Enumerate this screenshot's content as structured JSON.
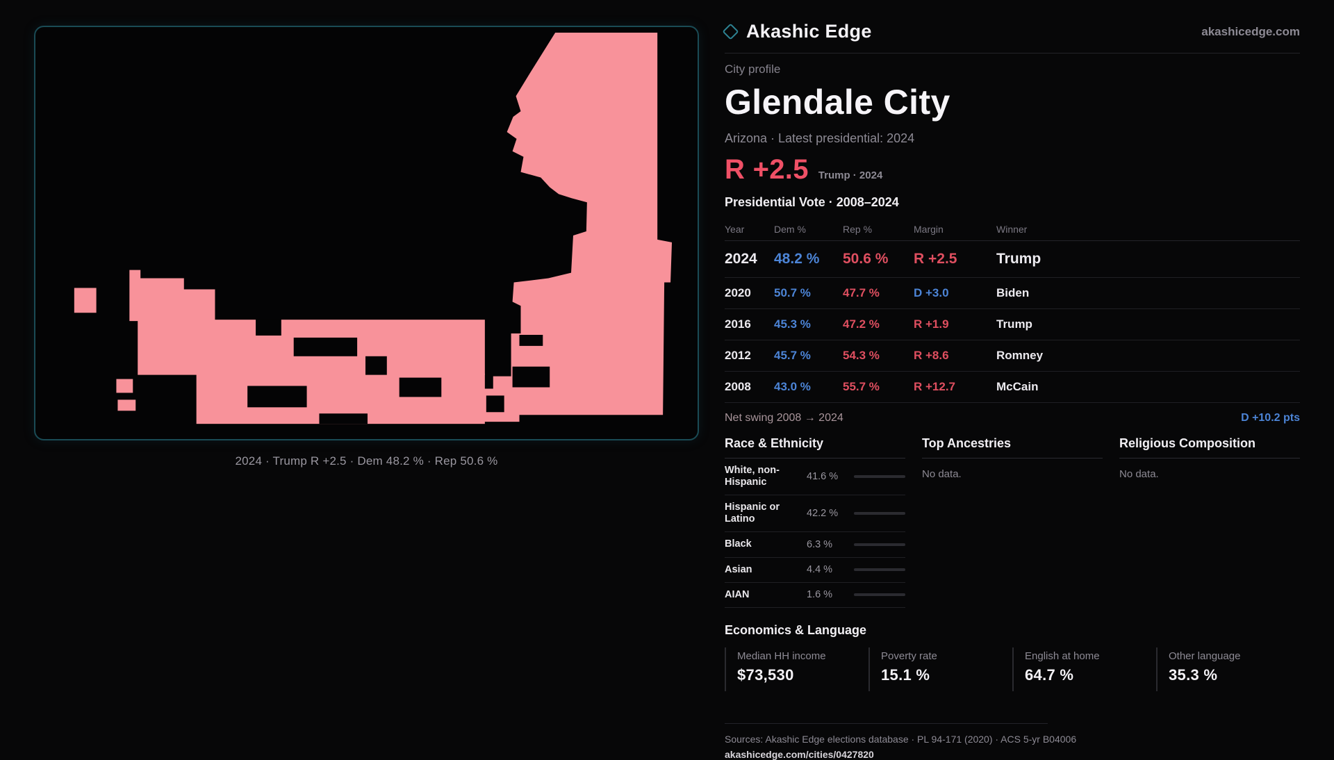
{
  "brand": {
    "name": "Akashic Edge",
    "domain": "akashicedge.com"
  },
  "map": {
    "caption": "2024 · Trump R +2.5 · Dem 48.2 % · Rep 50.6 %",
    "fill_color": "#f8929a",
    "hole_color": "#040405",
    "border_color": "#1a4b55"
  },
  "profile": {
    "eyebrow": "City profile",
    "city": "Glendale City",
    "subtitle": "Arizona · Latest presidential: 2024",
    "headline_margin": "R +2.5",
    "headline_note": "Trump · 2024"
  },
  "vote_table": {
    "title": "Presidential Vote · 2008–2024",
    "columns": {
      "year": "Year",
      "dem": "Dem %",
      "rep": "Rep %",
      "margin": "Margin",
      "winner": "Winner"
    },
    "rows": [
      {
        "year": "2024",
        "dem": "48.2 %",
        "rep": "50.6 %",
        "margin": "R +2.5",
        "winner": "Trump"
      },
      {
        "year": "2020",
        "dem": "50.7 %",
        "rep": "47.7 %",
        "margin": "D +3.0",
        "winner": "Biden"
      },
      {
        "year": "2016",
        "dem": "45.3 %",
        "rep": "47.2 %",
        "margin": "R +1.9",
        "winner": "Trump"
      },
      {
        "year": "2012",
        "dem": "45.7 %",
        "rep": "54.3 %",
        "margin": "R +8.6",
        "winner": "Romney"
      },
      {
        "year": "2008",
        "dem": "43.0 %",
        "rep": "55.7 %",
        "margin": "R +12.7",
        "winner": "McCain"
      }
    ],
    "net_swing_label": "Net swing 2008 → 2024",
    "net_swing_value": "D +10.2 pts"
  },
  "demographics": {
    "race": {
      "title": "Race & Ethnicity",
      "rows": [
        {
          "label": "White, non-Hispanic",
          "value": "41.6 %",
          "pct": 41.6,
          "color": "#aab4d2"
        },
        {
          "label": "Hispanic or Latino",
          "value": "42.2 %",
          "pct": 42.2,
          "color": "#d89a2a"
        },
        {
          "label": "Black",
          "value": "6.3 %",
          "pct": 6.3,
          "color": "#7b62d9"
        },
        {
          "label": "Asian",
          "value": "4.4 %",
          "pct": 4.4,
          "color": "#3f9f5f"
        },
        {
          "label": "AIAN",
          "value": "1.6 %",
          "pct": 1.6,
          "color": "#c2622f"
        }
      ]
    },
    "ancestries": {
      "title": "Top Ancestries",
      "empty": "No data."
    },
    "religion": {
      "title": "Religious Composition",
      "empty": "No data."
    }
  },
  "economics": {
    "title": "Economics & Language",
    "stats": [
      {
        "label": "Median HH income",
        "value": "$73,530"
      },
      {
        "label": "Poverty rate",
        "value": "15.1 %"
      },
      {
        "label": "English at home",
        "value": "64.7 %"
      },
      {
        "label": "Other language",
        "value": "35.3 %"
      }
    ]
  },
  "footer": {
    "sources": "Sources: Akashic Edge elections database · PL 94-171 (2020) · ACS 5-yr B04006",
    "permalink": "akashicedge.com/cities/0427820"
  },
  "colors": {
    "dem_blue": "#4c84d6",
    "rep_red": "#df4f60",
    "accent_red": "#ef5066",
    "map_pink": "#f8929a"
  }
}
